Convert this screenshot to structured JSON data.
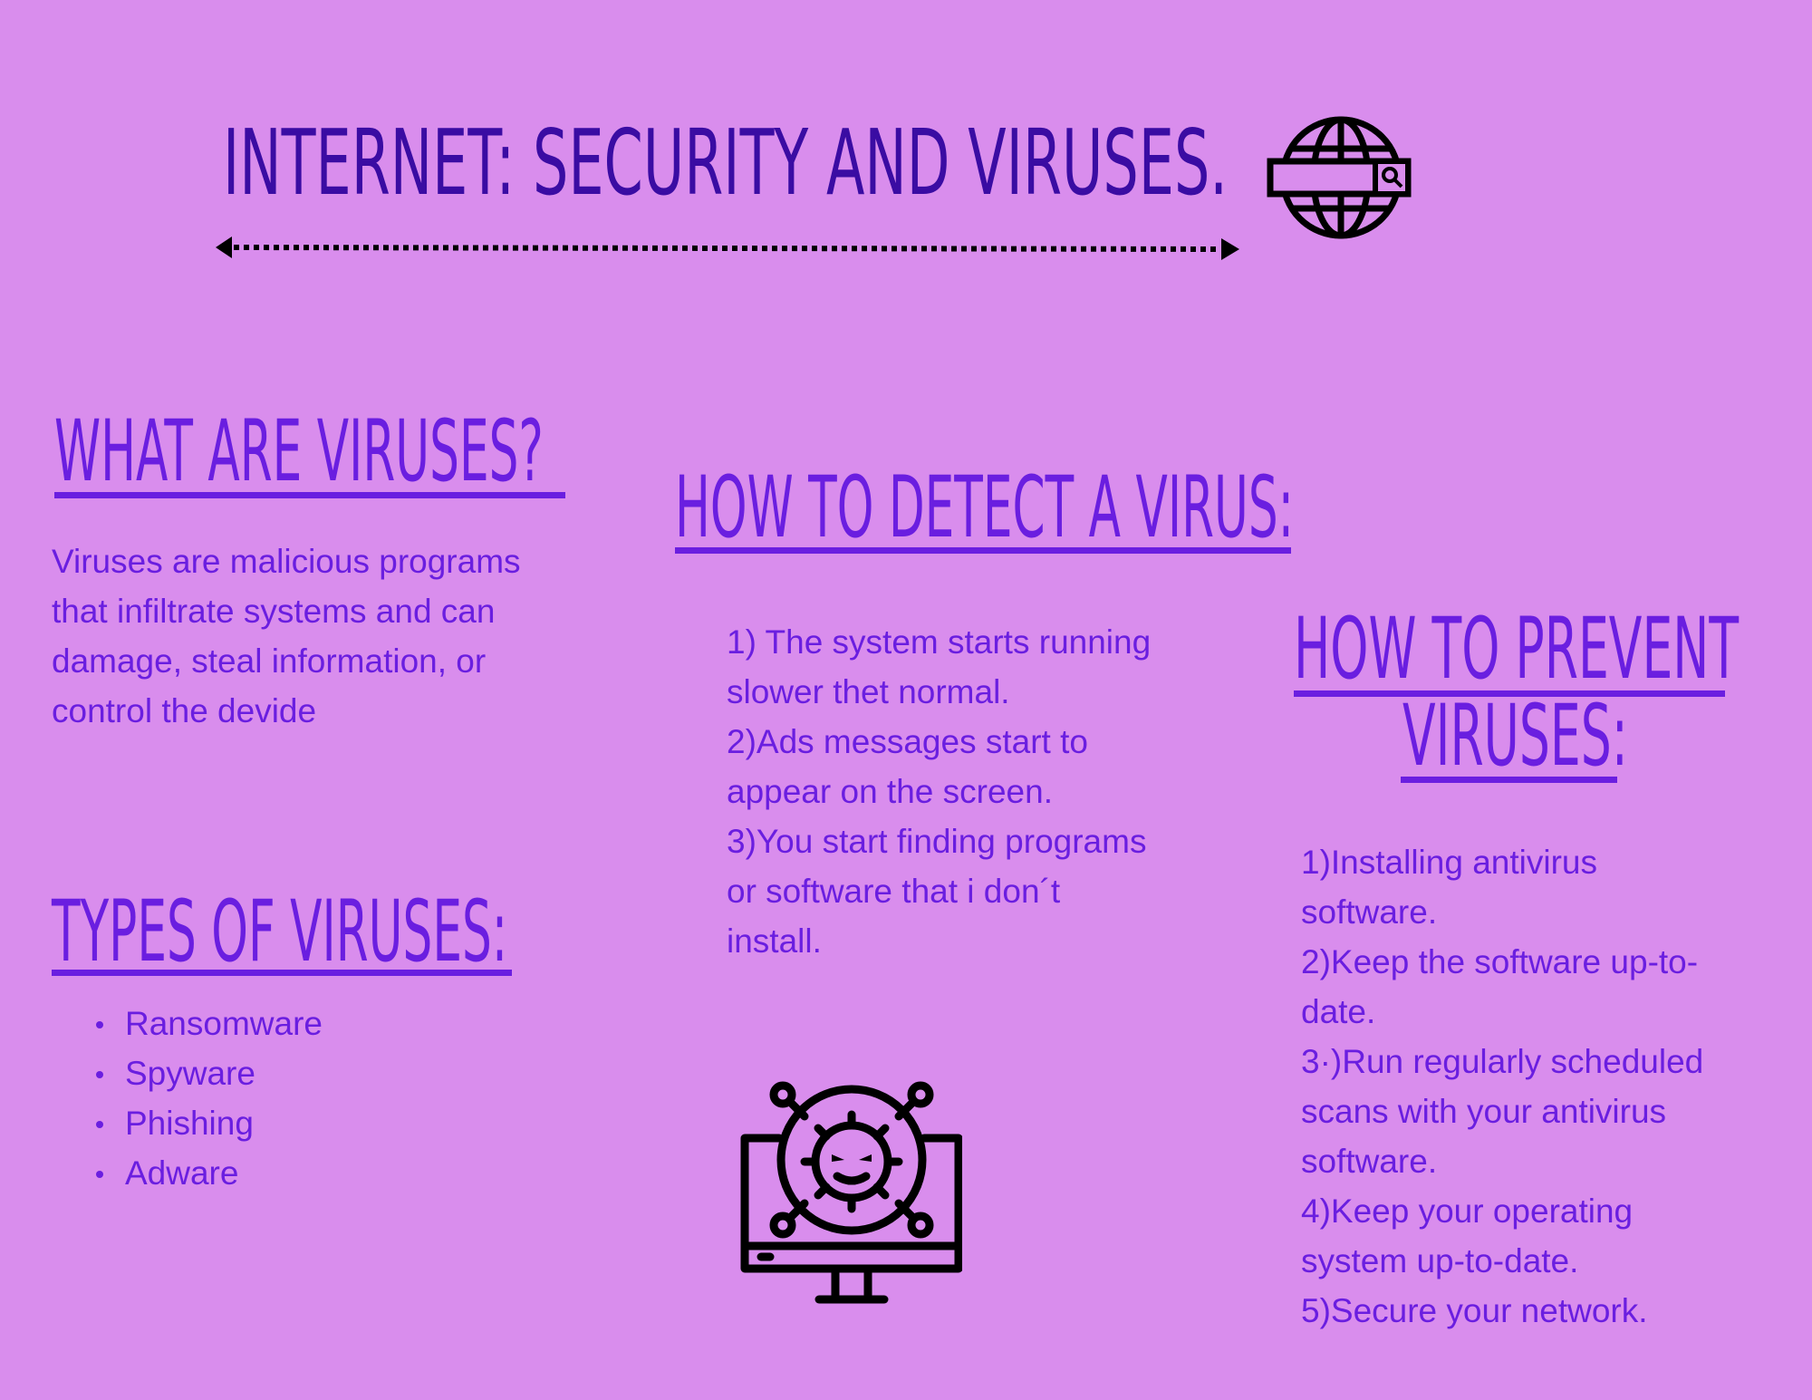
{
  "title": "INTERNET: SECURITY AND VIRUSES.",
  "what": {
    "heading": "WHAT ARE VIRUSES?",
    "lines": [
      "Viruses are malicious programs",
      "that infiltrate systems and can",
      "damage, steal information, or",
      "control the devide"
    ]
  },
  "types": {
    "heading": "TYPES OF VIRUSES:",
    "items": [
      "Ransomware",
      "Spyware",
      "Phishing",
      "Adware"
    ]
  },
  "detect": {
    "heading": "HOW TO DETECT A VIRUS:",
    "lines": [
      "1) The system starts running",
      "slower thet normal.",
      "2)Ads messages start to",
      "appear on the screen.",
      "3)You start finding programs",
      "or software that i don´t",
      "install."
    ]
  },
  "prevent": {
    "heading_line1": "HOW TO PREVENT",
    "heading_line2": "VIRUSES:",
    "lines": [
      "1)Installing antivirus",
      "software.",
      "2)Keep the software up-to-",
      "date.",
      "3·)Run regularly scheduled",
      "scans with your antivirus",
      "software.",
      "4)Keep your operating",
      "system up-to-date.",
      "5)Secure your network."
    ]
  },
  "colors": {
    "background": "#d98ded",
    "text": "#6a1ee0",
    "title": "#3a0ca3",
    "icon": "#000000"
  },
  "icons": [
    "globe-search-icon",
    "virus-monitor-icon",
    "double-arrow-icon"
  ]
}
